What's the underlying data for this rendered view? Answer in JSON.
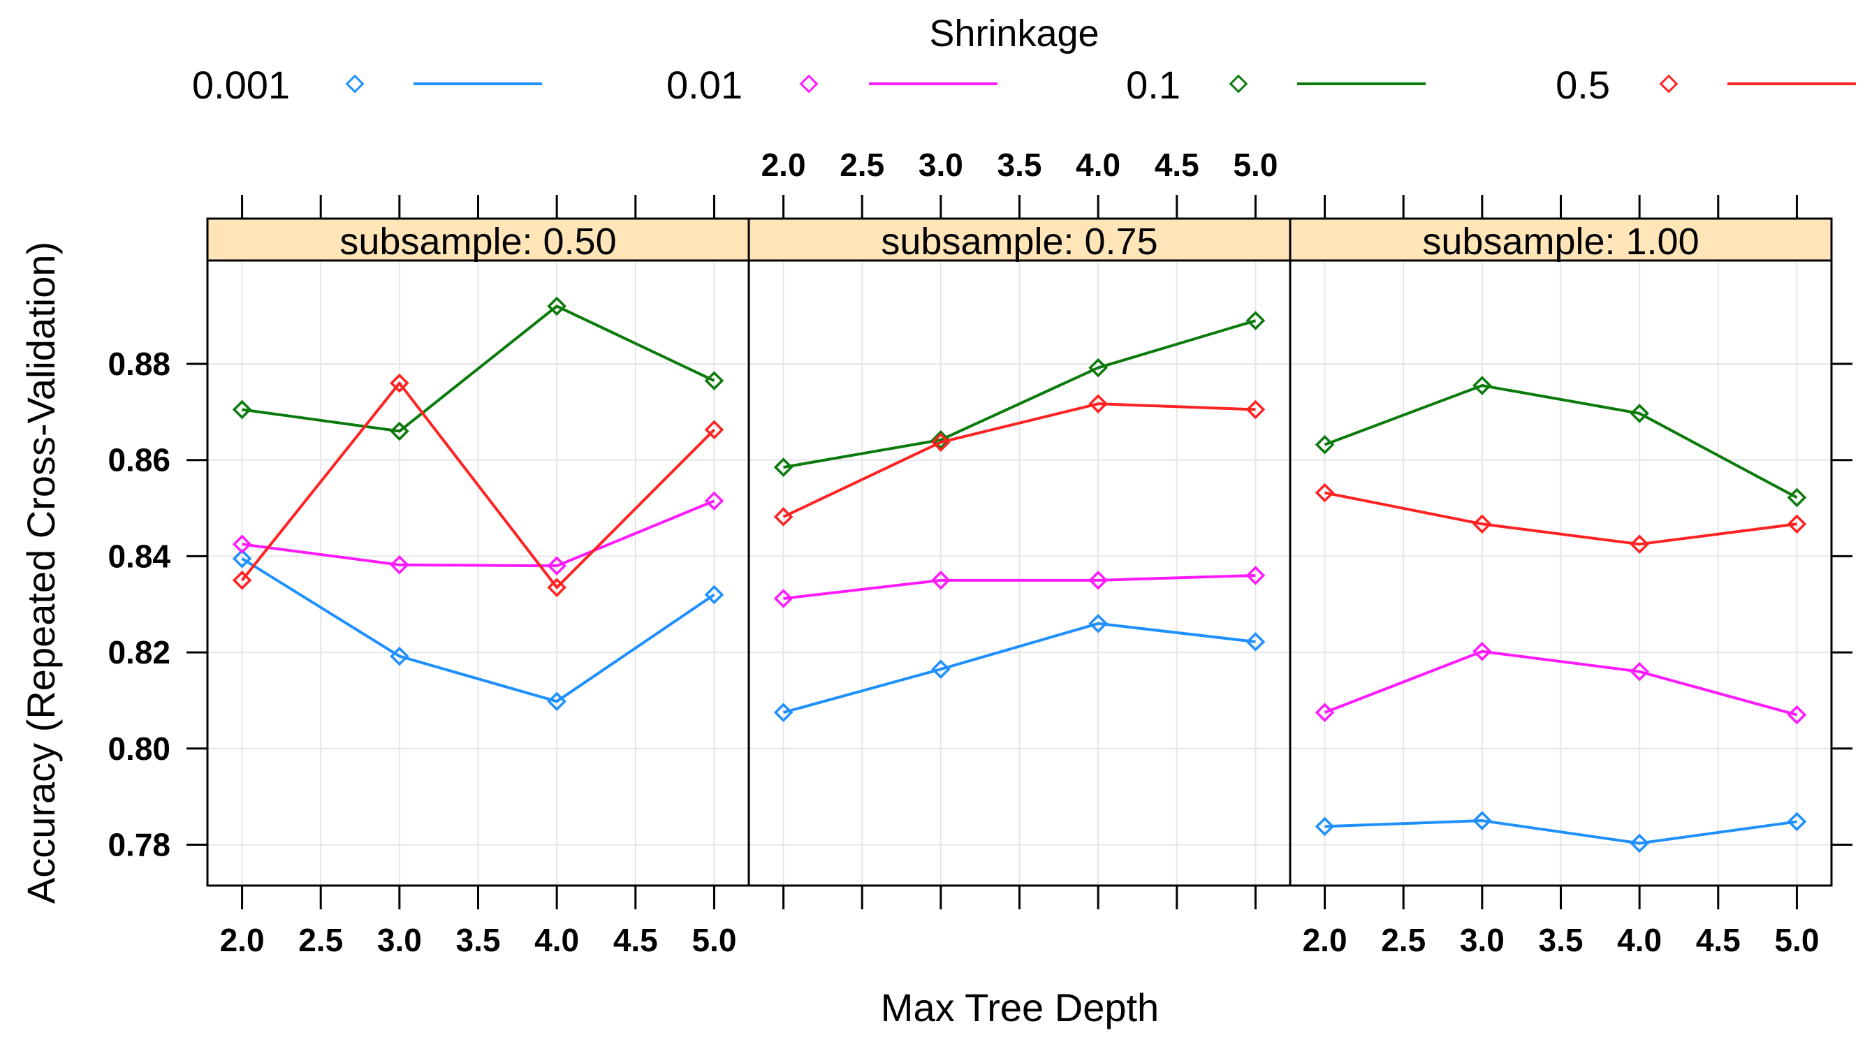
{
  "chart_data": {
    "type": "line",
    "legend_title": "Shrinkage",
    "legend_position": "top",
    "xlabel": "Max Tree Depth",
    "ylabel": "Accuracy (Repeated Cross-Validation)",
    "x": [
      2,
      3,
      4,
      5
    ],
    "xlim": [
      1.78,
      5.22
    ],
    "ylim": [
      0.7715,
      0.9015
    ],
    "x_ticks": [
      2.0,
      2.5,
      3.0,
      3.5,
      4.0,
      4.5,
      5.0
    ],
    "x_tick_labels": [
      "2.0",
      "2.5",
      "3.0",
      "3.5",
      "4.0",
      "4.5",
      "5.0"
    ],
    "y_ticks": [
      0.78,
      0.8,
      0.82,
      0.84,
      0.86,
      0.88
    ],
    "y_tick_labels": [
      "0.78",
      "0.80",
      "0.82",
      "0.84",
      "0.86",
      "0.88"
    ],
    "grid": true,
    "legend": [
      {
        "name": "0.001",
        "color": "#1e90ff"
      },
      {
        "name": "0.01",
        "color": "#ff1aff"
      },
      {
        "name": "0.1",
        "color": "#0a7a0a"
      },
      {
        "name": "0.5",
        "color": "#ff2222"
      }
    ],
    "panels": [
      {
        "strip": "subsample: 0.50",
        "series": [
          {
            "name": "0.001",
            "values": [
              0.8395,
              0.8192,
              0.8098,
              0.832
            ]
          },
          {
            "name": "0.01",
            "values": [
              0.8425,
              0.8382,
              0.838,
              0.8515
            ]
          },
          {
            "name": "0.1",
            "values": [
              0.8705,
              0.866,
              0.892,
              0.8765
            ]
          },
          {
            "name": "0.5",
            "values": [
              0.835,
              0.876,
              0.8335,
              0.8663
            ]
          }
        ]
      },
      {
        "strip": "subsample: 0.75",
        "series": [
          {
            "name": "0.001",
            "values": [
              0.8075,
              0.8165,
              0.826,
              0.8222
            ]
          },
          {
            "name": "0.01",
            "values": [
              0.8312,
              0.835,
              0.835,
              0.836
            ]
          },
          {
            "name": "0.1",
            "values": [
              0.8585,
              0.8642,
              0.8792,
              0.889
            ]
          },
          {
            "name": "0.5",
            "values": [
              0.8482,
              0.8637,
              0.8717,
              0.8705
            ]
          }
        ]
      },
      {
        "strip": "subsample: 1.00",
        "series": [
          {
            "name": "0.001",
            "values": [
              0.7838,
              0.785,
              0.7803,
              0.7848
            ]
          },
          {
            "name": "0.01",
            "values": [
              0.8075,
              0.8202,
              0.816,
              0.807
            ]
          },
          {
            "name": "0.1",
            "values": [
              0.8632,
              0.8755,
              0.8697,
              0.8522
            ]
          },
          {
            "name": "0.5",
            "values": [
              0.8532,
              0.8467,
              0.8425,
              0.8467
            ]
          }
        ]
      }
    ]
  }
}
